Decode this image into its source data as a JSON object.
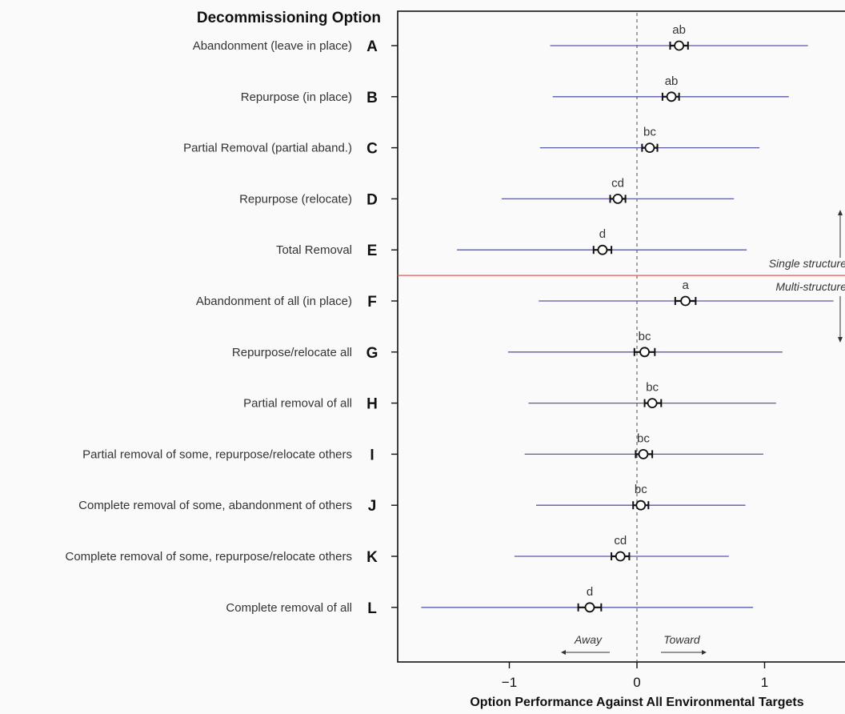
{
  "chart_data": {
    "type": "scatter",
    "title": "",
    "xlabel": "Option Performance Against All Environmental Targets",
    "ylabel": "",
    "legend_heading": "Decommissioning Option",
    "xlim": [
      -1.85,
      1.62
    ],
    "xticks": [
      -1,
      0,
      1
    ],
    "xtick_labels": [
      "−1",
      "0",
      "1"
    ],
    "reference_line": 0,
    "options": [
      {
        "code": "A",
        "label": "Abandonment (leave in place)",
        "estimate": 0.33,
        "se_low": 0.26,
        "se_high": 0.4,
        "ci_low": -0.68,
        "ci_high": 1.34,
        "group": "ab"
      },
      {
        "code": "B",
        "label": "Repurpose (in place)",
        "estimate": 0.27,
        "se_low": 0.2,
        "se_high": 0.33,
        "ci_low": -0.66,
        "ci_high": 1.19,
        "group": "ab"
      },
      {
        "code": "C",
        "label": "Partial Removal (partial aband.)",
        "estimate": 0.1,
        "se_low": 0.04,
        "se_high": 0.16,
        "ci_low": -0.76,
        "ci_high": 0.96,
        "group": "bc"
      },
      {
        "code": "D",
        "label": "Repurpose (relocate)",
        "estimate": -0.15,
        "se_low": -0.21,
        "se_high": -0.09,
        "ci_low": -1.06,
        "ci_high": 0.76,
        "group": "cd"
      },
      {
        "code": "E",
        "label": "Total Removal",
        "estimate": -0.27,
        "se_low": -0.34,
        "se_high": -0.2,
        "ci_low": -1.41,
        "ci_high": 0.86,
        "group": "d"
      },
      {
        "code": "F",
        "label": "Abandonment of all (in place)",
        "estimate": 0.38,
        "se_low": 0.3,
        "se_high": 0.46,
        "ci_low": -0.77,
        "ci_high": 1.54,
        "group": "a"
      },
      {
        "code": "G",
        "label": "Repurpose/relocate all",
        "estimate": 0.06,
        "se_low": -0.02,
        "se_high": 0.14,
        "ci_low": -1.01,
        "ci_high": 1.14,
        "group": "bc"
      },
      {
        "code": "H",
        "label": "Partial removal of all",
        "estimate": 0.12,
        "se_low": 0.06,
        "se_high": 0.19,
        "ci_low": -0.85,
        "ci_high": 1.09,
        "group": "bc"
      },
      {
        "code": "I",
        "label": "Partial removal of some, repurpose/relocate others",
        "estimate": 0.05,
        "se_low": -0.01,
        "se_high": 0.12,
        "ci_low": -0.88,
        "ci_high": 0.99,
        "group": "bc"
      },
      {
        "code": "J",
        "label": "Complete removal of some, abandonment of others",
        "estimate": 0.03,
        "se_low": -0.03,
        "se_high": 0.09,
        "ci_low": -0.79,
        "ci_high": 0.85,
        "group": "bc"
      },
      {
        "code": "K",
        "label": "Complete removal of some, repurpose/relocate others",
        "estimate": -0.13,
        "se_low": -0.2,
        "se_high": -0.06,
        "ci_low": -0.96,
        "ci_high": 0.72,
        "group": "cd"
      },
      {
        "code": "L",
        "label": "Complete removal of all",
        "estimate": -0.37,
        "se_low": -0.46,
        "se_high": -0.28,
        "ci_low": -1.69,
        "ci_high": 0.91,
        "group": "d"
      }
    ],
    "divider_after": "E",
    "group_notes": {
      "above": "Single structure",
      "below": "Multi-structure"
    },
    "direction_labels": {
      "negative": "Away",
      "positive": "Toward"
    },
    "colors": {
      "ci_line": "#5a5aa8",
      "point": "#111111",
      "divider": "#e05a5a",
      "reference": "#666666"
    }
  }
}
